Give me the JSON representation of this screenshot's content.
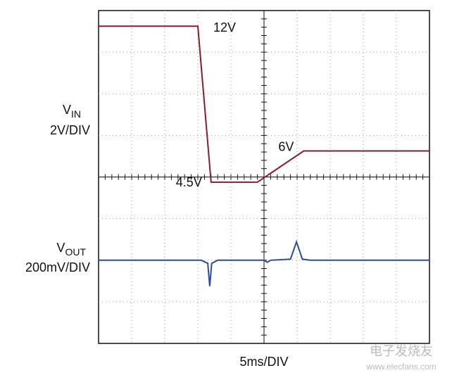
{
  "chart_data": {
    "type": "line",
    "ylabel": {
      "symbol": "V",
      "subscript": "IN",
      "scale": "2V/DIV"
    },
    "y2label": {
      "symbol": "V",
      "subscript": "OUT",
      "scale": "200mV/DIV"
    },
    "xlabel": "5ms/DIV",
    "xlim": [
      0,
      50
    ],
    "ylim": [
      -3.25,
      12.75
    ],
    "y2lim": [
      -400,
      1200
    ],
    "grid": true,
    "series": [
      {
        "name": "VIN",
        "color": "#8b1c2c",
        "x": [
          0,
          15,
          17,
          24,
          31,
          50
        ],
        "values": [
          12,
          12,
          4.5,
          4.5,
          6,
          6
        ]
      },
      {
        "name": "VOUT",
        "color": "#2b4c9b",
        "axis": "y2",
        "x": [
          0,
          15.5,
          16.5,
          16.8,
          17.1,
          18,
          25,
          25.5,
          26,
          29,
          29.9,
          30.8,
          32,
          50
        ],
        "values": [
          0,
          0,
          -15,
          -125,
          -15,
          0,
          0,
          -10,
          0,
          5,
          88,
          5,
          0,
          0
        ]
      }
    ],
    "annotations": [
      {
        "text": "12V",
        "x": 15,
        "y": 12
      },
      {
        "text": "6V",
        "x": 31,
        "y": 6
      },
      {
        "text": "4.5V",
        "x": 17,
        "y": 4.5
      }
    ],
    "watermark": [
      "电子发烧友",
      "www.elecfans.com"
    ]
  }
}
